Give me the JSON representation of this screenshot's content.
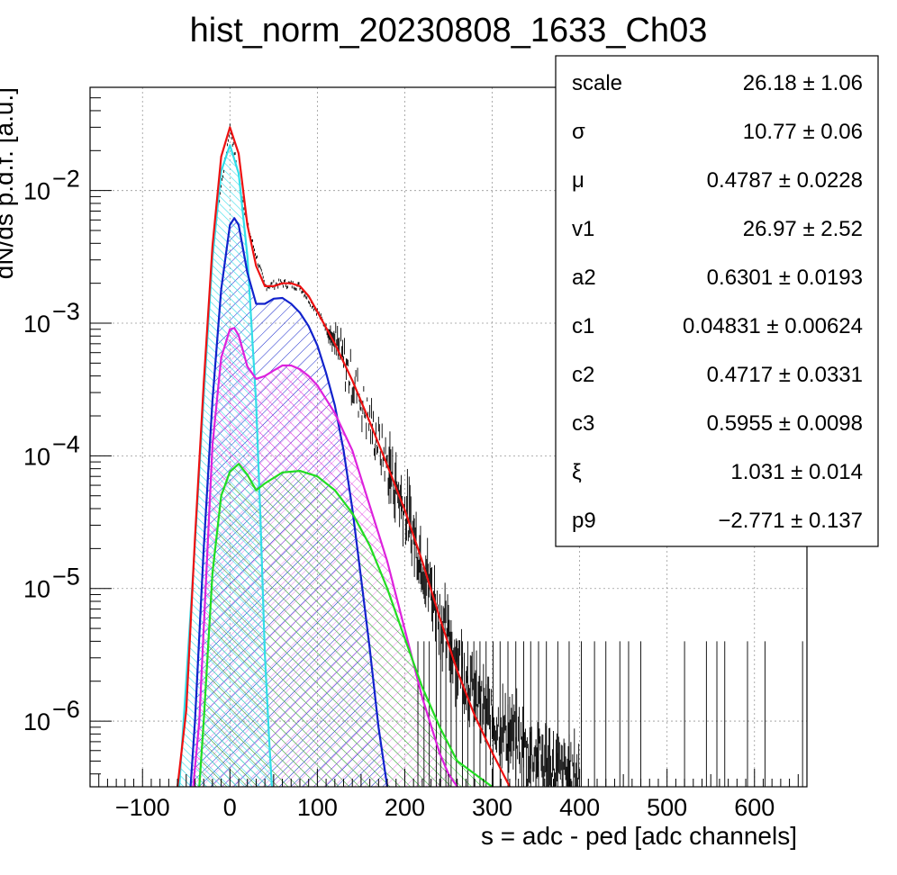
{
  "chart_data": {
    "type": "line",
    "title": "hist_norm_20230808_1633_Ch03",
    "xlabel": "s = adc - ped [adc channels]",
    "ylabel": "dN/ds p.d.f. [a.u.]",
    "xlim": [
      -160,
      660
    ],
    "ylim": [
      3.2e-07,
      0.06
    ],
    "ylog": true,
    "grid": true,
    "x_ticks": [
      {
        "value": -100,
        "label": "−100"
      },
      {
        "value": 0,
        "label": "0"
      },
      {
        "value": 100,
        "label": "100"
      },
      {
        "value": 200,
        "label": "200"
      },
      {
        "value": 300,
        "label": "300"
      },
      {
        "value": 400,
        "label": "400"
      },
      {
        "value": 500,
        "label": "500"
      },
      {
        "value": 600,
        "label": "600"
      }
    ],
    "y_ticks": [
      {
        "value": 0.01,
        "base": "10",
        "exp": "−2"
      },
      {
        "value": 0.001,
        "base": "10",
        "exp": "−3"
      },
      {
        "value": 0.0001,
        "base": "10",
        "exp": "−4"
      },
      {
        "value": 1e-05,
        "base": "10",
        "exp": "−5"
      },
      {
        "value": 1e-06,
        "base": "10",
        "exp": "−6"
      }
    ],
    "series": [
      {
        "color": "#ee1111",
        "fill": "none",
        "x": [
          -60,
          -50,
          -40,
          -30,
          -20,
          -10,
          0,
          10,
          20,
          30,
          40,
          50,
          60,
          70,
          80,
          90,
          100,
          120,
          140,
          160,
          180,
          200,
          220,
          240,
          260,
          280,
          300,
          320
        ],
        "y": [
          3.2e-07,
          1.2e-06,
          2.4e-05,
          0.00035,
          0.0038,
          0.018,
          0.03,
          0.019,
          0.0055,
          0.0027,
          0.0019,
          0.0019,
          0.002,
          0.002,
          0.0019,
          0.0016,
          0.00122,
          0.0007,
          0.00037,
          0.00018,
          8.5e-05,
          3.9e-05,
          1.6e-05,
          6e-06,
          2.4e-06,
          1.1e-06,
          5.8e-07,
          3.2e-07
        ]
      },
      {
        "color": "#000000",
        "fill": "none",
        "x": [
          -40,
          -20,
          0,
          20,
          40,
          60,
          80,
          100,
          120,
          140,
          160,
          180,
          200,
          220,
          240,
          260,
          280,
          300,
          320,
          340,
          360,
          380,
          400
        ],
        "y": [
          2.4e-05,
          0.0038,
          0.03,
          0.0055,
          0.0019,
          0.002,
          0.0019,
          0.00122,
          0.0007,
          0.00037,
          0.00018,
          8.5e-05,
          3.9e-05,
          1.6e-05,
          6e-06,
          3e-06,
          1.5e-06,
          1e-06,
          8e-07,
          6e-07,
          5e-07,
          4e-07,
          4e-07
        ]
      },
      {
        "color": "#33dde8",
        "fill": "#5ee5ee",
        "x": [
          -58,
          -50,
          -40,
          -30,
          -20,
          -10,
          0,
          10,
          20,
          30,
          35,
          40,
          45,
          48
        ],
        "y": [
          3.2e-07,
          2e-06,
          2.2e-05,
          0.00028,
          0.0031,
          0.014,
          0.022,
          0.0135,
          0.0032,
          0.00025,
          3.2e-05,
          3.2e-06,
          7e-07,
          3.2e-07
        ]
      },
      {
        "color": "#1122cc",
        "fill": "#1122cc",
        "x": [
          -45,
          -40,
          -30,
          -20,
          -10,
          0,
          5,
          10,
          20,
          30,
          40,
          50,
          60,
          70,
          80,
          90,
          100,
          110,
          120,
          130,
          140,
          150,
          160,
          170,
          180
        ],
        "y": [
          3.2e-07,
          1e-06,
          2e-05,
          0.00026,
          0.0018,
          0.0055,
          0.0062,
          0.0055,
          0.0024,
          0.0014,
          0.0014,
          0.00153,
          0.00155,
          0.0014,
          0.0012,
          0.00095,
          0.00068,
          0.00042,
          0.00024,
          0.00011,
          4e-05,
          1.2e-05,
          3.5e-06,
          9e-07,
          3.2e-07
        ]
      },
      {
        "color": "#dd22dd",
        "fill": "#dd22dd",
        "x": [
          -42,
          -35,
          -30,
          -20,
          -10,
          0,
          5,
          10,
          20,
          30,
          40,
          50,
          60,
          70,
          80,
          90,
          100,
          120,
          140,
          160,
          180,
          200,
          220,
          240,
          250,
          260
        ],
        "y": [
          3.2e-07,
          1e-06,
          5e-06,
          0.00012,
          0.00055,
          0.0009,
          0.00092,
          0.00081,
          0.00047,
          0.00038,
          0.0004,
          0.00044,
          0.00048,
          0.00048,
          0.00045,
          0.0004,
          0.00034,
          0.00021,
          0.00011,
          4.2e-05,
          1.6e-05,
          4.9e-06,
          1.5e-06,
          5.7e-07,
          4e-07,
          3.2e-07
        ]
      },
      {
        "color": "#22dd22",
        "fill": "#22dd22",
        "x": [
          -35,
          -30,
          -20,
          -10,
          0,
          10,
          20,
          30,
          40,
          60,
          80,
          100,
          120,
          140,
          160,
          180,
          200,
          220,
          240,
          260,
          280,
          300
        ],
        "y": [
          3.2e-07,
          1e-06,
          1.3e-05,
          5e-05,
          7.6e-05,
          8.7e-05,
          7.2e-05,
          5.5e-05,
          6.2e-05,
          7.5e-05,
          7.7e-05,
          7e-05,
          5.5e-05,
          3.7e-05,
          2.1e-05,
          1e-05,
          4.2e-06,
          1.8e-06,
          9e-07,
          5e-07,
          4e-07,
          3.2e-07
        ]
      }
    ]
  },
  "stats_box": {
    "rows": [
      {
        "name": "scale",
        "value": "26.18 ± 1.06"
      },
      {
        "name": "σ",
        "value": "10.77 ± 0.06"
      },
      {
        "name": "μ",
        "value": "0.4787 ± 0.0228"
      },
      {
        "name": "v1",
        "value": "26.97 ± 2.52"
      },
      {
        "name": "a2",
        "value": "0.6301 ± 0.0193"
      },
      {
        "name": "c1",
        "value": "0.04831 ± 0.00624"
      },
      {
        "name": "c2",
        "value": "0.4717 ± 0.0331"
      },
      {
        "name": "c3",
        "value": "0.5955 ± 0.0098"
      },
      {
        "name": "ξ",
        "value": "1.031 ± 0.014"
      },
      {
        "name": "p9",
        "value": "−2.771 ± 0.137"
      }
    ]
  }
}
